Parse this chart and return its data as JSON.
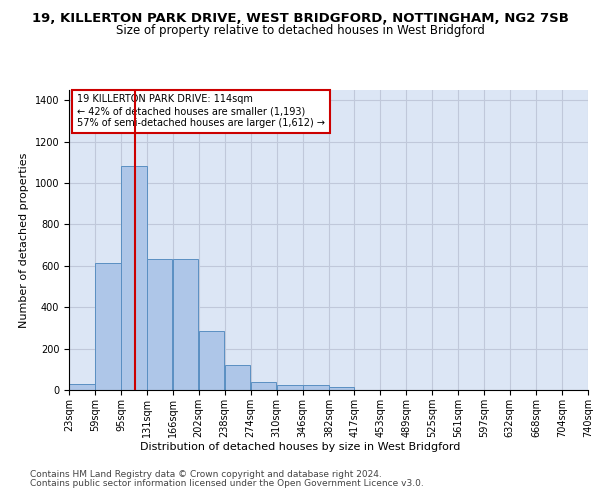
{
  "title1": "19, KILLERTON PARK DRIVE, WEST BRIDGFORD, NOTTINGHAM, NG2 7SB",
  "title2": "Size of property relative to detached houses in West Bridgford",
  "xlabel": "Distribution of detached houses by size in West Bridgford",
  "ylabel": "Number of detached properties",
  "footnote1": "Contains HM Land Registry data © Crown copyright and database right 2024.",
  "footnote2": "Contains public sector information licensed under the Open Government Licence v3.0.",
  "bar_color": "#aec6e8",
  "bar_edge_color": "#5a8fc2",
  "background_color": "#dce6f5",
  "vline_x": 114,
  "vline_color": "#cc0000",
  "annotation_text": "19 KILLERTON PARK DRIVE: 114sqm\n← 42% of detached houses are smaller (1,193)\n57% of semi-detached houses are larger (1,612) →",
  "annotation_box_color": "#cc0000",
  "bin_edges": [
    23,
    59,
    95,
    131,
    166,
    202,
    238,
    274,
    310,
    346,
    382,
    417,
    453,
    489,
    525,
    561,
    597,
    632,
    668,
    704,
    740
  ],
  "bar_heights": [
    30,
    615,
    1085,
    635,
    635,
    285,
    120,
    40,
    25,
    25,
    15,
    0,
    0,
    0,
    0,
    0,
    0,
    0,
    0,
    0
  ],
  "ylim": [
    0,
    1450
  ],
  "yticks": [
    0,
    200,
    400,
    600,
    800,
    1000,
    1200,
    1400
  ],
  "grid_color": "#c0c8da",
  "title1_fontsize": 9.5,
  "title2_fontsize": 8.5,
  "axis_label_fontsize": 8,
  "tick_fontsize": 7,
  "footnote_fontsize": 6.5
}
